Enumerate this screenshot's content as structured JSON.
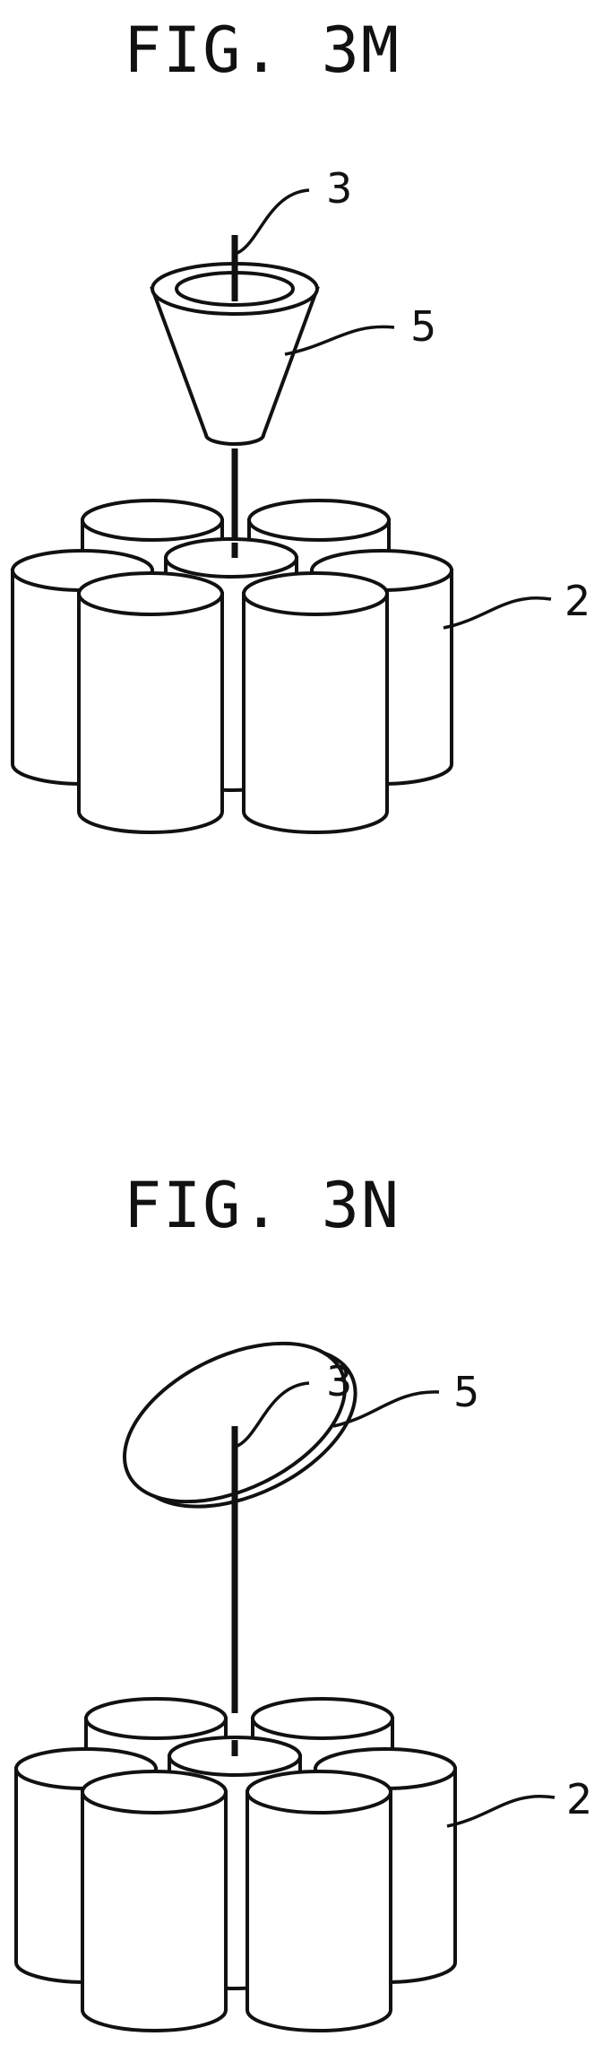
{
  "figures": [
    {
      "title": "FIG. 3M",
      "labels": {
        "rod": "3",
        "member": "5",
        "cells": "2"
      }
    },
    {
      "title": "FIG. 3N",
      "labels": {
        "rod": "3",
        "member": "5",
        "cells": "2"
      }
    }
  ],
  "colors": {
    "ink": "#111111",
    "background": "#ffffff"
  }
}
